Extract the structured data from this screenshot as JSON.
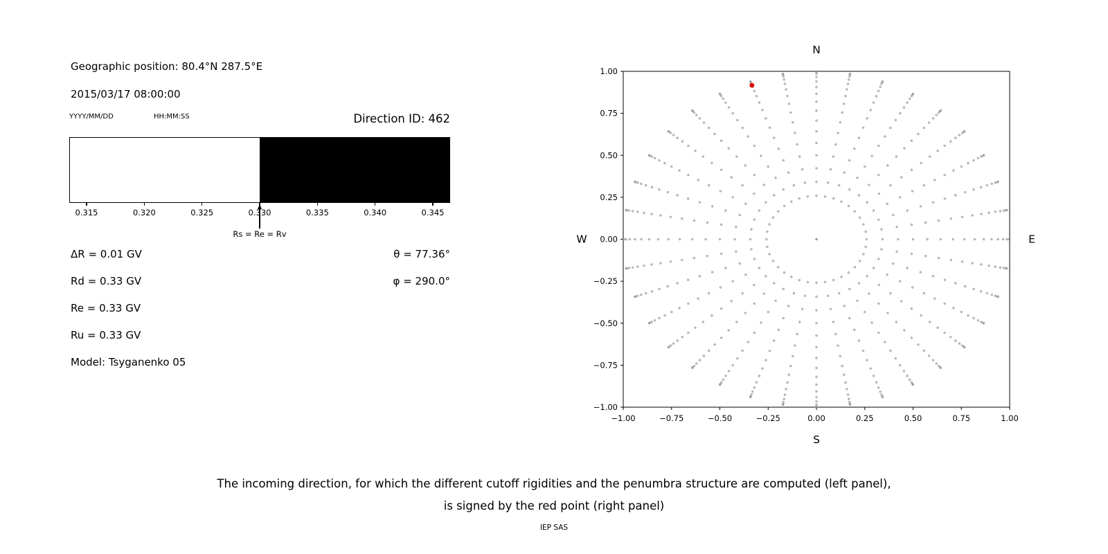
{
  "header": {
    "geo_position": "Geographic position: 80.4°N 287.5°E",
    "datetime": "2015/03/17 08:00:00",
    "date_format": "YYYY/MM/DD",
    "time_format": "HH:MM:SS",
    "direction_id": "Direction ID: 462"
  },
  "left_panel": {
    "values": [
      "ΔR = 0.01 GV",
      "Rd = 0.33 GV",
      "Re = 0.33 GV",
      "Ru = 0.33 GV",
      "Model: Tsyganenko 05"
    ],
    "theta": "θ = 77.36°",
    "phi": "φ = 290.0°"
  },
  "caption": {
    "line1": "The incoming direction, for which the different cutoff rigidities and the penumbra structure are computed (left panel),",
    "line2": "is signed by the red point (right panel)",
    "credit": "IEP SAS"
  },
  "chart_data": [
    {
      "type": "bar",
      "panel": "left-penumbra",
      "description": "Penumbra structure band: white = allowed rigidity range, black = forbidden rigidity range",
      "x_range": [
        0.3135,
        0.3465
      ],
      "segments": [
        {
          "from": 0.3135,
          "to": 0.33,
          "color": "#ffffff",
          "meaning": "allowed"
        },
        {
          "from": 0.33,
          "to": 0.3465,
          "color": "#000000",
          "meaning": "forbidden"
        }
      ],
      "x_ticks": [
        0.315,
        0.32,
        0.325,
        0.33,
        0.335,
        0.34,
        0.345
      ],
      "x_tick_labels": [
        "0.315",
        "0.320",
        "0.325",
        "0.330",
        "0.335",
        "0.340",
        "0.345"
      ],
      "annotation": {
        "x": 0.33,
        "label": "Rs = Re = Rv"
      }
    },
    {
      "type": "scatter",
      "panel": "right-direction-map",
      "xlim": [
        -1,
        1
      ],
      "ylim": [
        -1,
        1
      ],
      "x_ticks": [
        -1,
        -0.75,
        -0.5,
        -0.25,
        0,
        0.25,
        0.5,
        0.75,
        1
      ],
      "x_tick_labels": [
        "−1.00",
        "−0.75",
        "−0.50",
        "−0.25",
        "0.00",
        "0.25",
        "0.50",
        "0.75",
        "1.00"
      ],
      "y_ticks": [
        -1,
        -0.75,
        -0.5,
        -0.25,
        0,
        0.25,
        0.5,
        0.75,
        1
      ],
      "y_tick_labels": [
        "−1.00",
        "−0.75",
        "−0.50",
        "−0.25",
        "0.00",
        "0.25",
        "0.50",
        "0.75",
        "1.00"
      ],
      "compass": {
        "top": "N",
        "bottom": "S",
        "left": "W",
        "right": "E"
      },
      "gray_dots": {
        "description": "36 radial spokes of gray dots; azimuth every 10°; dot radial position = sin(zenith) for zenith 15°–90° in 5° steps (dots cluster toward the rim)",
        "azimuth_deg_start": 0,
        "azimuth_deg_step": 10,
        "azimuth_count": 36,
        "zenith_deg_start": 15,
        "zenith_deg_step": 5,
        "zenith_count": 16,
        "color": "#8a8a8a"
      },
      "center_dot": {
        "x": 0,
        "y": 0
      },
      "red_point": {
        "x": -0.334,
        "y": 0.917,
        "color": "#dd0000"
      }
    }
  ]
}
